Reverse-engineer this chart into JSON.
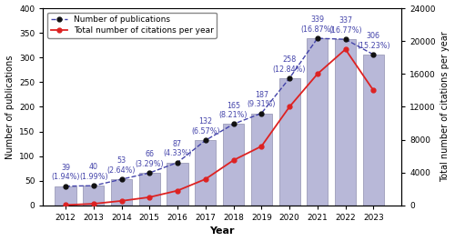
{
  "years": [
    2012,
    2013,
    2014,
    2015,
    2016,
    2017,
    2018,
    2019,
    2020,
    2021,
    2022,
    2023
  ],
  "publications": [
    39,
    40,
    53,
    66,
    87,
    132,
    165,
    187,
    258,
    339,
    337,
    306
  ],
  "pub_percentages": [
    "1.94%",
    "1.99%",
    "2.64%",
    "3.29%",
    "4.33%",
    "6.57%",
    "8.21%",
    "9.31%",
    "12.84%",
    "16.87%",
    "16.77%",
    "15.23%"
  ],
  "citations": [
    50,
    200,
    550,
    1000,
    1800,
    3200,
    5500,
    7200,
    12000,
    16000,
    19000,
    14000
  ],
  "bar_color": "#b8b8d8",
  "bar_edgecolor": "#9090b0",
  "pub_line_color": "#4444aa",
  "pub_marker_color": "#111111",
  "cit_line_color": "#dd2222",
  "cit_marker_color": "#dd2222",
  "xlabel": "Year",
  "ylabel_left": "Number of publications",
  "ylabel_right": "Total number of citations per year",
  "legend_pub": "Number of publications",
  "legend_cit": "Total number of citations per year",
  "ylim_left": [
    0,
    400
  ],
  "ylim_right": [
    0,
    24000
  ],
  "yticks_left": [
    0,
    50,
    100,
    150,
    200,
    250,
    300,
    350,
    400
  ],
  "yticks_right": [
    0,
    4000,
    8000,
    12000,
    16000,
    20000,
    24000
  ],
  "annotation_color_pub": "#4444aa",
  "annotation_fontsize": 5.8
}
